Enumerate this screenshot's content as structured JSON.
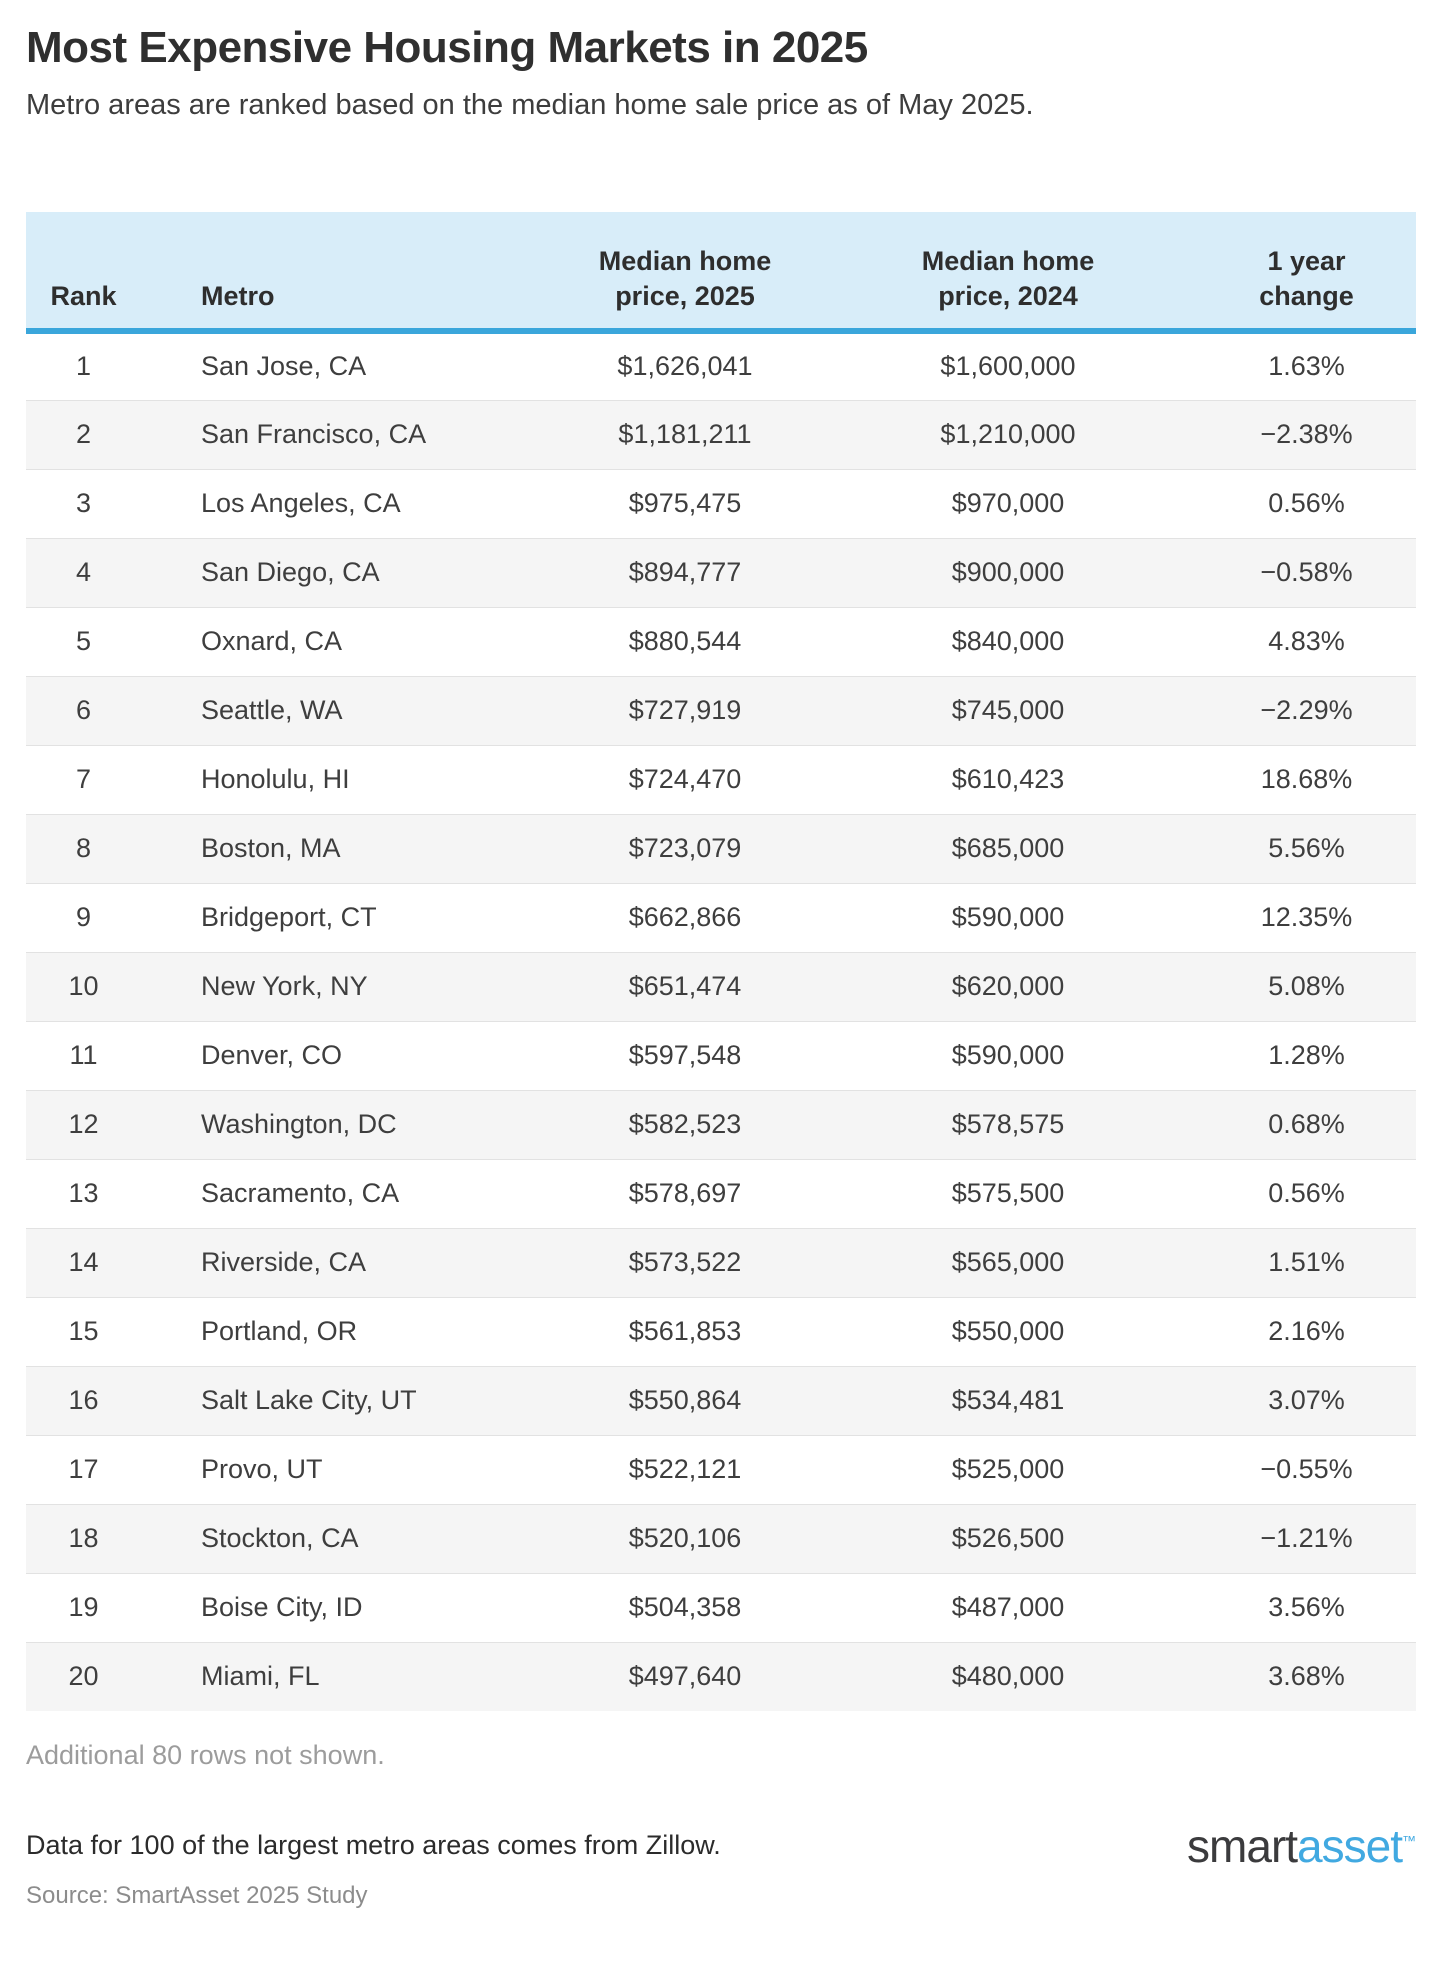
{
  "chart_data": {
    "type": "table",
    "title": "Most Expensive Housing Markets in 2025",
    "subtitle": "Metro areas are ranked based on the median home sale price as of May 2025.",
    "columns": [
      {
        "line1": "",
        "line2": "Rank"
      },
      {
        "line1": "",
        "line2": "Metro"
      },
      {
        "line1": "Median home",
        "line2": "price, 2025"
      },
      {
        "line1": "Median home",
        "line2": "price, 2024"
      },
      {
        "line1": "1 year",
        "line2": "change"
      }
    ],
    "rows": [
      {
        "rank": "1",
        "metro": "San Jose, CA",
        "price_2025": "$1,626,041",
        "price_2024": "$1,600,000",
        "change": "1.63%"
      },
      {
        "rank": "2",
        "metro": "San Francisco, CA",
        "price_2025": "$1,181,211",
        "price_2024": "$1,210,000",
        "change": "−2.38%"
      },
      {
        "rank": "3",
        "metro": "Los Angeles, CA",
        "price_2025": "$975,475",
        "price_2024": "$970,000",
        "change": "0.56%"
      },
      {
        "rank": "4",
        "metro": "San Diego, CA",
        "price_2025": "$894,777",
        "price_2024": "$900,000",
        "change": "−0.58%"
      },
      {
        "rank": "5",
        "metro": "Oxnard, CA",
        "price_2025": "$880,544",
        "price_2024": "$840,000",
        "change": "4.83%"
      },
      {
        "rank": "6",
        "metro": "Seattle, WA",
        "price_2025": "$727,919",
        "price_2024": "$745,000",
        "change": "−2.29%"
      },
      {
        "rank": "7",
        "metro": "Honolulu, HI",
        "price_2025": "$724,470",
        "price_2024": "$610,423",
        "change": "18.68%"
      },
      {
        "rank": "8",
        "metro": "Boston, MA",
        "price_2025": "$723,079",
        "price_2024": "$685,000",
        "change": "5.56%"
      },
      {
        "rank": "9",
        "metro": "Bridgeport, CT",
        "price_2025": "$662,866",
        "price_2024": "$590,000",
        "change": "12.35%"
      },
      {
        "rank": "10",
        "metro": "New York, NY",
        "price_2025": "$651,474",
        "price_2024": "$620,000",
        "change": "5.08%"
      },
      {
        "rank": "11",
        "metro": "Denver, CO",
        "price_2025": "$597,548",
        "price_2024": "$590,000",
        "change": "1.28%"
      },
      {
        "rank": "12",
        "metro": "Washington, DC",
        "price_2025": "$582,523",
        "price_2024": "$578,575",
        "change": "0.68%"
      },
      {
        "rank": "13",
        "metro": "Sacramento, CA",
        "price_2025": "$578,697",
        "price_2024": "$575,500",
        "change": "0.56%"
      },
      {
        "rank": "14",
        "metro": "Riverside, CA",
        "price_2025": "$573,522",
        "price_2024": "$565,000",
        "change": "1.51%"
      },
      {
        "rank": "15",
        "metro": "Portland, OR",
        "price_2025": "$561,853",
        "price_2024": "$550,000",
        "change": "2.16%"
      },
      {
        "rank": "16",
        "metro": "Salt Lake City, UT",
        "price_2025": "$550,864",
        "price_2024": "$534,481",
        "change": "3.07%"
      },
      {
        "rank": "17",
        "metro": "Provo, UT",
        "price_2025": "$522,121",
        "price_2024": "$525,000",
        "change": "−0.55%"
      },
      {
        "rank": "18",
        "metro": "Stockton, CA",
        "price_2025": "$520,106",
        "price_2024": "$526,500",
        "change": "−1.21%"
      },
      {
        "rank": "19",
        "metro": "Boise City, ID",
        "price_2025": "$504,358",
        "price_2024": "$487,000",
        "change": "3.56%"
      },
      {
        "rank": "20",
        "metro": "Miami, FL",
        "price_2025": "$497,640",
        "price_2024": "$480,000",
        "change": "3.68%"
      }
    ]
  },
  "footer": {
    "additional_note": "Additional 80 rows not shown.",
    "data_note": "Data for 100 of the largest metro areas comes from Zillow.",
    "source": "Source: SmartAsset 2025 Study",
    "logo": {
      "smart": "smart",
      "asset": "asset",
      "trademark": "TM"
    }
  },
  "colors": {
    "header_bg": "#d8edf9",
    "header_rule": "#3aa6db",
    "row_alt": "#f5f5f5",
    "row_border": "#e2e2e2",
    "text": "#3e3e3e",
    "heading": "#2f2f2f",
    "muted": "#9c9c9c",
    "source": "#8c8c8c",
    "logo_smart": "#3b3b3d",
    "logo_asset": "#41a9e1"
  }
}
